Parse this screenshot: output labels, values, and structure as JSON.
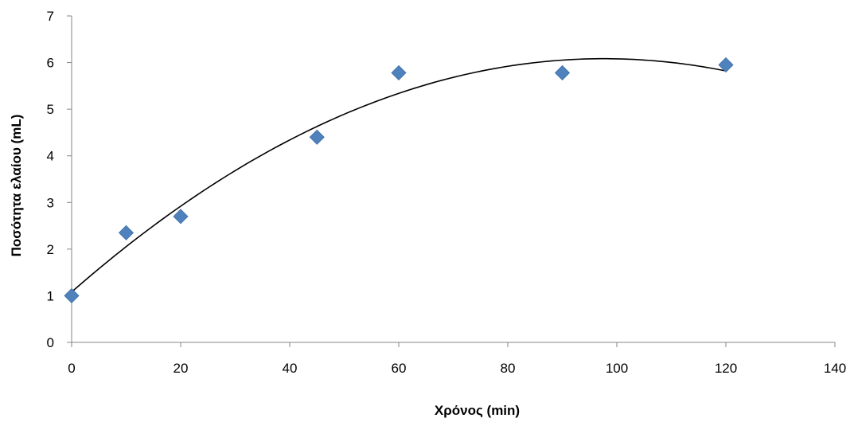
{
  "chart_data": {
    "type": "scatter",
    "title": "",
    "xlabel": "Χρόνος (min)",
    "ylabel": "Ποσότητα ελαίου (mL)",
    "xlim": [
      0,
      140
    ],
    "ylim": [
      0,
      7
    ],
    "x_ticks": [
      "0",
      "20",
      "40",
      "60",
      "80",
      "100",
      "120",
      "140"
    ],
    "y_ticks": [
      "0",
      "1",
      "2",
      "3",
      "4",
      "5",
      "6",
      "7"
    ],
    "grid": false,
    "legend": "none",
    "series": [
      {
        "marker": "diamond",
        "color": "#4F81BD",
        "x": [
          0,
          10,
          20,
          45,
          60,
          90,
          120
        ],
        "y": [
          1.0,
          2.35,
          2.7,
          4.4,
          5.78,
          5.78,
          5.95
        ]
      }
    ],
    "trendline": {
      "type": "polynomial-2",
      "color": "#000000",
      "x_range": [
        0,
        120
      ],
      "coefficients": [
        1.08,
        0.1025,
        -0.000525
      ]
    }
  }
}
